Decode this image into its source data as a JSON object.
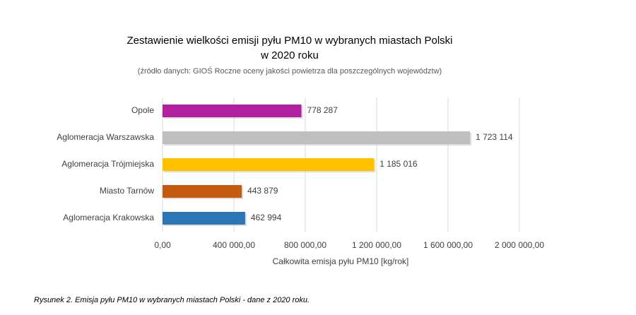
{
  "chart_data": {
    "type": "bar",
    "orientation": "horizontal",
    "title": [
      "Zestawienie wielkości emisji pyłu PM10  w wybranych miastach Polski",
      "w 2020 roku"
    ],
    "subtitle": "(źródło danych: GIOŚ Roczne oceny jakości powietrza dla poszczególnych województw)",
    "x_label": "Całkowita emisja pyłu PM10 [kg/rok]",
    "categories": [
      "Opole",
      "Aglomeracja Warszawska",
      "Aglomeracja Trójmiejska",
      "Miasto Tarnów",
      "Aglomeracja Krakowska"
    ],
    "values": [
      778287,
      1723114,
      1185016,
      443879,
      462994
    ],
    "value_labels": [
      "778 287",
      "1 723 114",
      "1 185 016",
      "443 879",
      "462 994"
    ],
    "colors": [
      "#b0209f",
      "#bfbfbf",
      "#ffc000",
      "#c55a11",
      "#2e75b6"
    ],
    "xlim": [
      0,
      2000000
    ],
    "xticks": [
      {
        "value": 0,
        "label": "0,00"
      },
      {
        "value": 400000,
        "label": "400 000,00"
      },
      {
        "value": 800000,
        "label": "800 000,00"
      },
      {
        "value": 1200000,
        "label": "1 200 000,00"
      },
      {
        "value": 1600000,
        "label": "1 600 000,00"
      },
      {
        "value": 2000000,
        "label": "2 000 000,00"
      }
    ],
    "grid": true
  },
  "caption": "Rysunek 2. Emisja pyłu PM10 w wybranych miastach Polski - dane z 2020 roku."
}
